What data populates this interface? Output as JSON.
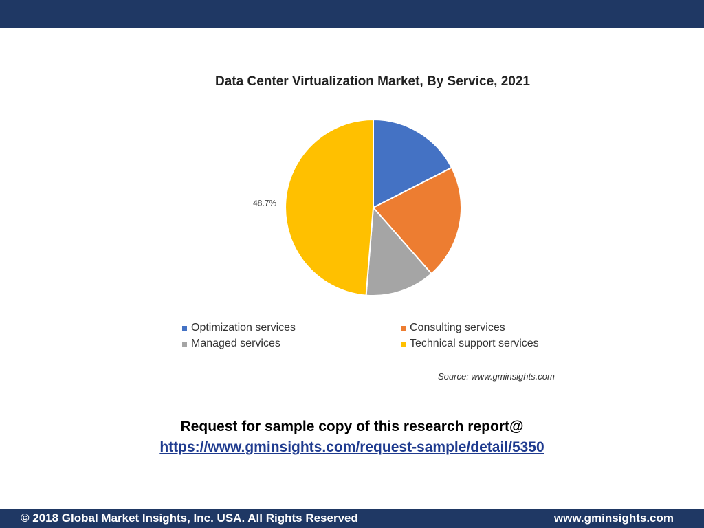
{
  "chart_data": {
    "type": "pie",
    "title": "Data Center Virtualization Market, By Service, 2021",
    "categories": [
      "Optimization services",
      "Consulting services",
      "Managed services",
      "Technical support services"
    ],
    "values": [
      17.5,
      21.0,
      12.8,
      48.7
    ],
    "colors": [
      "#4472c4",
      "#ed7d31",
      "#a5a5a5",
      "#ffc000"
    ],
    "data_labels": [
      "",
      "",
      "",
      "48.7%"
    ],
    "legend_position": "bottom"
  },
  "source": "Source: www.gminsights.com",
  "cta": {
    "line": "Request for sample copy of this research report@",
    "link": "https://www.gminsights.com/request-sample/detail/5350"
  },
  "footer": {
    "copyright": "© 2018 Global Market Insights, Inc. USA. All Rights Reserved",
    "site": "www.gminsights.com"
  }
}
